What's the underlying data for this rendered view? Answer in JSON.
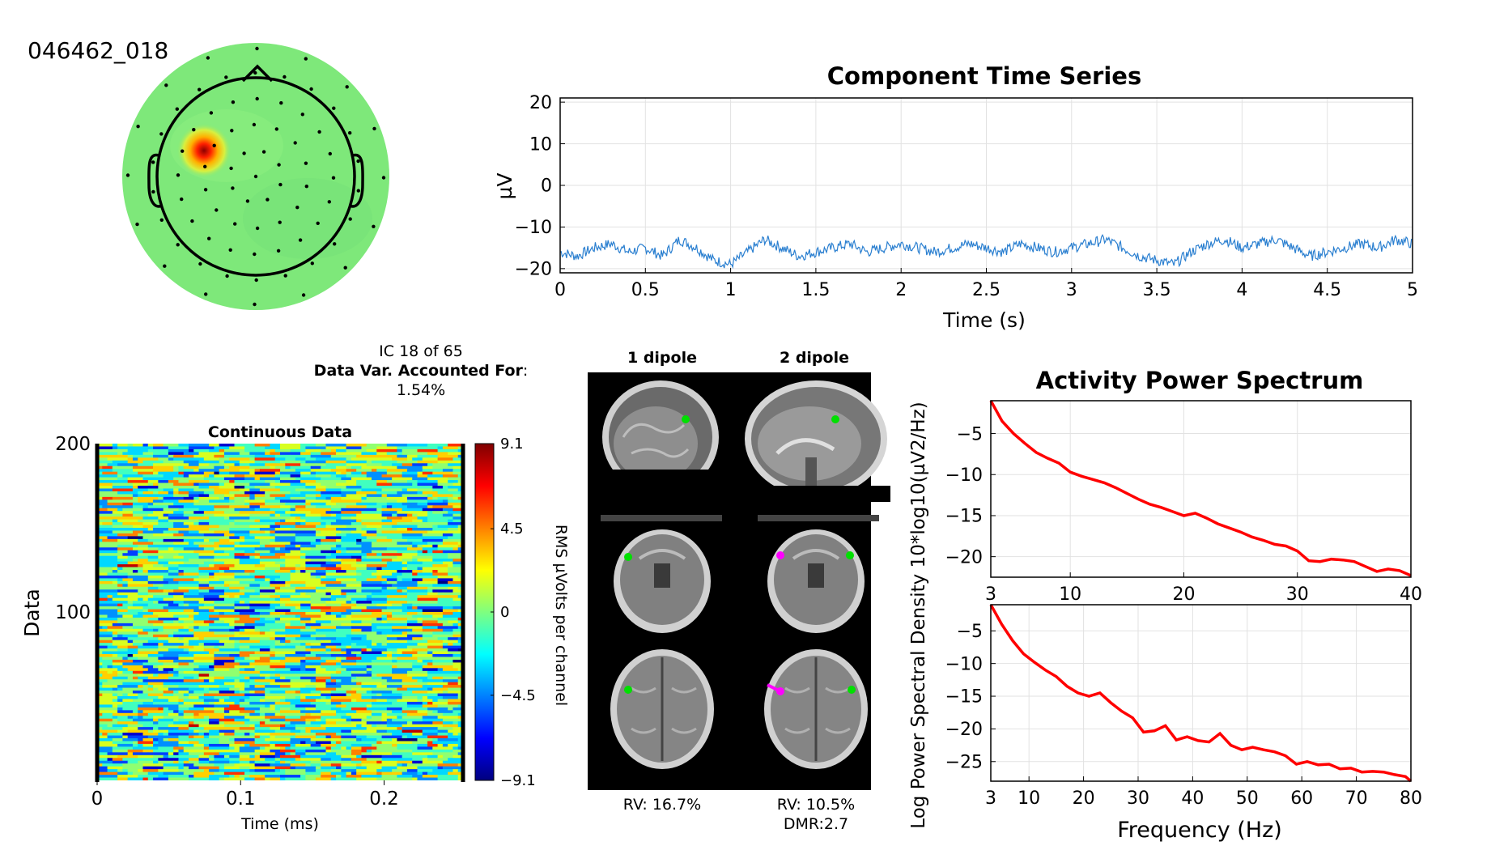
{
  "component_id": "046462_018",
  "ic_info": {
    "line1": "IC 18 of 65",
    "line2_bold": "Data Var. Accounted For",
    "line2_tail": ":",
    "line3": "1.54%"
  },
  "colors": {
    "trace": "#2a7fd0",
    "spectrum": "#ff0000",
    "head_outline": "#000000",
    "dipole_1": "#00e000",
    "dipole_2": "#ff00ff",
    "brain_bg": "#000000"
  },
  "dipole_panel": {
    "col1_title": "1 dipole",
    "col2_title": "2 dipole",
    "rv1": "RV: 16.7%",
    "rv2": "RV: 10.5%",
    "dmr2": "DMR:2.7"
  },
  "chart_data": [
    {
      "type": "line",
      "title": "Component Time Series",
      "xlabel": "Time (s)",
      "ylabel": "µV",
      "xlim": [
        0,
        5
      ],
      "ylim": [
        -21,
        21
      ],
      "xticks": [
        0,
        0.5,
        1,
        1.5,
        2,
        2.5,
        3,
        3.5,
        4,
        4.5,
        5
      ],
      "yticks": [
        20,
        10,
        0,
        -10,
        -20
      ],
      "grid": true,
      "series": [
        {
          "x": [
            0,
            0.1,
            0.2,
            0.3,
            0.4,
            0.5,
            0.6,
            0.7,
            0.8,
            0.9,
            1.0,
            1.1,
            1.2,
            1.3,
            1.4,
            1.5,
            1.6,
            1.7,
            1.8,
            1.9,
            2.0,
            2.1,
            2.2,
            2.3,
            2.4,
            2.5,
            2.6,
            2.7,
            2.8,
            2.9,
            3.0,
            3.1,
            3.2,
            3.3,
            3.4,
            3.5,
            3.6,
            3.7,
            3.8,
            3.9,
            4.0,
            4.1,
            4.2,
            4.3,
            4.4,
            4.5,
            4.6,
            4.7,
            4.8,
            4.9,
            5.0
          ],
          "values": [
            -16,
            -17,
            -15,
            -14,
            -16,
            -15,
            -17,
            -13,
            -15,
            -18,
            -19,
            -16,
            -13,
            -15,
            -17,
            -16,
            -15,
            -14,
            -16,
            -15,
            -14,
            -15,
            -16,
            -15,
            -14,
            -15,
            -16,
            -14,
            -15,
            -16,
            -15,
            -14,
            -13,
            -15,
            -17,
            -18,
            -19,
            -16,
            -14,
            -13,
            -15,
            -14,
            -13,
            -15,
            -17,
            -16,
            -15,
            -14,
            -15,
            -13,
            -14
          ]
        }
      ]
    },
    {
      "type": "heatmap",
      "title": "Continuous Data",
      "xlabel": "Time (ms)",
      "ylabel": "Data",
      "xlim": [
        0,
        0.255
      ],
      "ylim": [
        0,
        200
      ],
      "xticks": [
        0,
        0.1,
        0.2
      ],
      "yticks": [
        200,
        100
      ],
      "colorbar": {
        "label": "RMS µVolts per channel",
        "ticks": [
          9.1,
          4.5,
          0,
          -4.5,
          -9.1
        ],
        "range": [
          -9.1,
          9.1
        ],
        "colormap": "jet"
      }
    },
    {
      "type": "line",
      "title": "Activity Power Spectrum",
      "xlabel": "",
      "ylabel": "Log Power Spectral Density 10*log10(µV2/Hz)",
      "xlim": [
        3,
        40
      ],
      "ylim": [
        -22.5,
        -1
      ],
      "xticks": [
        3,
        10,
        20,
        30,
        40
      ],
      "yticks": [
        -5,
        -10,
        -15,
        -20
      ],
      "grid": true,
      "series": [
        {
          "x": [
            3,
            4,
            5,
            6,
            7,
            8,
            9,
            10,
            11,
            12,
            13,
            14,
            15,
            16,
            17,
            18,
            19,
            20,
            21,
            22,
            23,
            24,
            25,
            26,
            27,
            28,
            29,
            30,
            31,
            32,
            33,
            34,
            35,
            36,
            37,
            38,
            39,
            40
          ],
          "values": [
            -1,
            -3.5,
            -5,
            -6.2,
            -7.3,
            -8,
            -8.6,
            -9.7,
            -10.2,
            -10.6,
            -11,
            -11.6,
            -12.3,
            -13,
            -13.6,
            -14,
            -14.5,
            -15,
            -14.7,
            -15.3,
            -16,
            -16.5,
            -17,
            -17.6,
            -18,
            -18.5,
            -18.7,
            -19.3,
            -20.5,
            -20.6,
            -20.3,
            -20.4,
            -20.6,
            -21.2,
            -21.8,
            -21.5,
            -21.7,
            -22.3
          ]
        }
      ]
    },
    {
      "type": "line",
      "title": "",
      "xlabel": "Frequency (Hz)",
      "ylabel": "",
      "xlim": [
        3,
        80
      ],
      "ylim": [
        -28,
        -1
      ],
      "xticks": [
        3,
        10,
        20,
        30,
        40,
        50,
        60,
        70,
        80
      ],
      "yticks": [
        -5,
        -10,
        -15,
        -20,
        -25
      ],
      "grid": true,
      "series": [
        {
          "x": [
            3,
            5,
            7,
            9,
            11,
            13,
            15,
            17,
            19,
            21,
            23,
            25,
            27,
            29,
            31,
            33,
            35,
            37,
            39,
            41,
            43,
            45,
            47,
            49,
            51,
            53,
            55,
            57,
            59,
            61,
            63,
            65,
            67,
            69,
            71,
            73,
            75,
            77,
            79,
            80
          ],
          "values": [
            -1,
            -4,
            -6.5,
            -8.5,
            -9.8,
            -11,
            -12,
            -13.5,
            -14.5,
            -15,
            -14.5,
            -16,
            -17.3,
            -18.3,
            -20.5,
            -20.3,
            -19.5,
            -21.7,
            -21.2,
            -21.8,
            -22,
            -20.7,
            -22.5,
            -23.2,
            -22.8,
            -23.2,
            -23.5,
            -24.1,
            -25.4,
            -25,
            -25.5,
            -25.4,
            -26.1,
            -26,
            -26.6,
            -26.5,
            -26.6,
            -27,
            -27.3,
            -28
          ]
        }
      ]
    }
  ]
}
